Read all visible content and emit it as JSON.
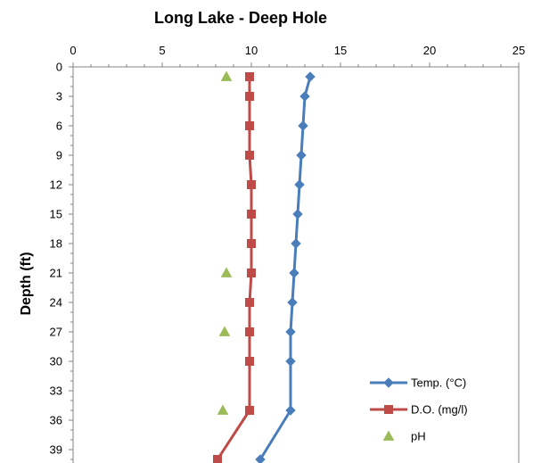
{
  "chart_data": {
    "type": "line",
    "title": "Long Lake - Deep Hole",
    "ylabel": "Depth (ft)",
    "xlabel": "",
    "xlim": [
      0,
      25
    ],
    "x_ticks": [
      0,
      5,
      10,
      15,
      20,
      25
    ],
    "ylim": [
      0,
      40
    ],
    "y_ticks": [
      0,
      3,
      6,
      9,
      12,
      15,
      18,
      21,
      24,
      27,
      30,
      33,
      36,
      39
    ],
    "y_inverted": true,
    "x_axis_position": "top",
    "grid": false,
    "legend_position": "bottom-right",
    "series": [
      {
        "name": "Temp. (°C)",
        "color": "#4a7ebb",
        "marker": "diamond",
        "line": true,
        "points": [
          [
            13.3,
            1
          ],
          [
            13.0,
            3
          ],
          [
            12.9,
            6
          ],
          [
            12.8,
            9
          ],
          [
            12.7,
            12
          ],
          [
            12.6,
            15
          ],
          [
            12.5,
            18
          ],
          [
            12.4,
            21
          ],
          [
            12.3,
            24
          ],
          [
            12.2,
            27
          ],
          [
            12.2,
            30
          ],
          [
            12.2,
            35
          ],
          [
            10.5,
            40
          ]
        ]
      },
      {
        "name": "D.O. (mg/l)",
        "color": "#be4b48",
        "marker": "square",
        "line": true,
        "points": [
          [
            9.9,
            1
          ],
          [
            9.9,
            3
          ],
          [
            9.9,
            6
          ],
          [
            9.9,
            9
          ],
          [
            10.0,
            12
          ],
          [
            10.0,
            15
          ],
          [
            10.0,
            18
          ],
          [
            10.0,
            21
          ],
          [
            9.9,
            24
          ],
          [
            9.9,
            27
          ],
          [
            9.9,
            30
          ],
          [
            9.9,
            35
          ],
          [
            8.1,
            40
          ]
        ]
      },
      {
        "name": "pH",
        "color": "#9bbb59",
        "marker": "triangle",
        "line": false,
        "points": [
          [
            8.6,
            1
          ],
          [
            8.6,
            21
          ],
          [
            8.5,
            27
          ],
          [
            8.4,
            35
          ]
        ]
      }
    ]
  }
}
